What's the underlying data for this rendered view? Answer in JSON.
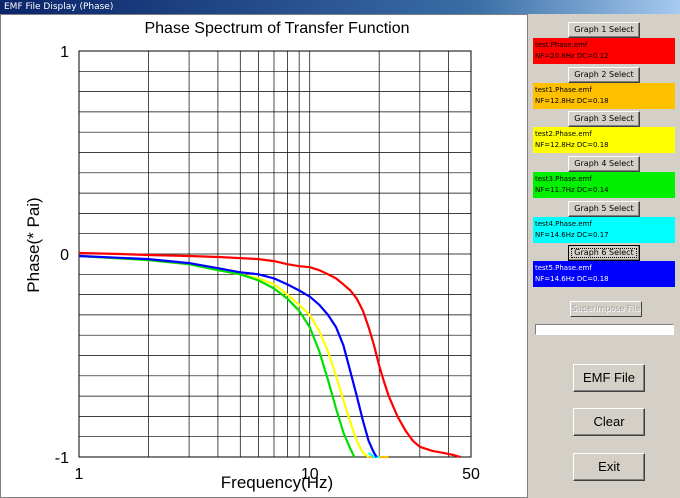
{
  "window": {
    "title": "EMF File Display (Phase)"
  },
  "chart_data": {
    "type": "line",
    "title": "Phase Spectrum of Transfer Function",
    "xlabel": "Frequency(Hz)",
    "ylabel": "Phase(* Pai)",
    "xscale": "log",
    "xlim": [
      1,
      50
    ],
    "ylim": [
      -1,
      1
    ],
    "x_tick_labels": [
      "1",
      "10",
      "50"
    ],
    "y_tick_labels": [
      "1",
      "0",
      "-1"
    ],
    "grid": true,
    "series": [
      {
        "color": "#ff0000",
        "points": [
          [
            1,
            0.005
          ],
          [
            1.5,
            0.0
          ],
          [
            2,
            -0.005
          ],
          [
            3,
            -0.01
          ],
          [
            4,
            -0.015
          ],
          [
            5,
            -0.02
          ],
          [
            6,
            -0.025
          ],
          [
            7,
            -0.035
          ],
          [
            8,
            -0.05
          ],
          [
            9,
            -0.06
          ],
          [
            10,
            -0.065
          ],
          [
            11,
            -0.08
          ],
          [
            12,
            -0.1
          ],
          [
            13,
            -0.12
          ],
          [
            14,
            -0.15
          ],
          [
            15,
            -0.18
          ],
          [
            16,
            -0.22
          ],
          [
            17,
            -0.28
          ],
          [
            18,
            -0.36
          ],
          [
            19,
            -0.45
          ],
          [
            20,
            -0.55
          ],
          [
            21,
            -0.63
          ],
          [
            22,
            -0.7
          ],
          [
            24,
            -0.8
          ],
          [
            26,
            -0.87
          ],
          [
            28,
            -0.92
          ],
          [
            30,
            -0.95
          ],
          [
            34,
            -0.97
          ],
          [
            38,
            -0.98
          ],
          [
            42,
            -0.99
          ],
          [
            45,
            -1.0
          ]
        ]
      },
      {
        "color": "#ffc000",
        "points": [
          [
            18,
            -1.0
          ],
          [
            20,
            -1.0
          ],
          [
            22,
            -1.0
          ]
        ]
      },
      {
        "color": "#ffff00",
        "points": [
          [
            1,
            -0.01
          ],
          [
            2,
            -0.03
          ],
          [
            3,
            -0.05
          ],
          [
            4,
            -0.08
          ],
          [
            5,
            -0.1
          ],
          [
            6,
            -0.12
          ],
          [
            7,
            -0.15
          ],
          [
            8,
            -0.2
          ],
          [
            9,
            -0.25
          ],
          [
            10,
            -0.3
          ],
          [
            11,
            -0.38
          ],
          [
            12,
            -0.48
          ],
          [
            13,
            -0.6
          ],
          [
            14,
            -0.72
          ],
          [
            15,
            -0.83
          ],
          [
            16,
            -0.92
          ],
          [
            17,
            -0.98
          ],
          [
            18,
            -1.0
          ]
        ]
      },
      {
        "color": "#00e000",
        "points": [
          [
            1,
            -0.01
          ],
          [
            2,
            -0.03
          ],
          [
            3,
            -0.05
          ],
          [
            4,
            -0.08
          ],
          [
            5,
            -0.1
          ],
          [
            6,
            -0.13
          ],
          [
            7,
            -0.17
          ],
          [
            8,
            -0.22
          ],
          [
            9,
            -0.28
          ],
          [
            10,
            -0.36
          ],
          [
            11,
            -0.48
          ],
          [
            12,
            -0.62
          ],
          [
            13,
            -0.76
          ],
          [
            14,
            -0.88
          ],
          [
            15,
            -0.96
          ],
          [
            15.6,
            -1.0
          ]
        ]
      },
      {
        "color": "#00ffff",
        "points": [
          [
            18,
            -0.98
          ],
          [
            19,
            -1.0
          ],
          [
            20,
            -1.0
          ]
        ]
      },
      {
        "color": "#0000ff",
        "points": [
          [
            1,
            -0.01
          ],
          [
            2,
            -0.025
          ],
          [
            3,
            -0.045
          ],
          [
            4,
            -0.07
          ],
          [
            5,
            -0.09
          ],
          [
            6,
            -0.1
          ],
          [
            7,
            -0.12
          ],
          [
            8,
            -0.15
          ],
          [
            9,
            -0.18
          ],
          [
            10,
            -0.21
          ],
          [
            11,
            -0.25
          ],
          [
            12,
            -0.3
          ],
          [
            13,
            -0.36
          ],
          [
            14,
            -0.45
          ],
          [
            15,
            -0.58
          ],
          [
            16,
            -0.7
          ],
          [
            17,
            -0.82
          ],
          [
            18,
            -0.92
          ],
          [
            19,
            -0.98
          ],
          [
            19.5,
            -1.0
          ]
        ]
      }
    ]
  },
  "graphs": [
    {
      "button": "Graph 1 Select",
      "file": "test.Phase.emf",
      "params": "NF=20.8Hz DC=0.12",
      "color": "#ff0000"
    },
    {
      "button": "Graph 2 Select",
      "file": "test1.Phase.emf",
      "params": "NF=12.8Hz DC=0.18",
      "color": "#ffc000"
    },
    {
      "button": "Graph 3 Select",
      "file": "test2.Phase.emf",
      "params": "NF=12.8Hz DC=0.18",
      "color": "#ffff00"
    },
    {
      "button": "Graph 4 Select",
      "file": "test3.Phase.emf",
      "params": "NF=11.7Hz DC=0.14",
      "color": "#00f000"
    },
    {
      "button": "Graph 5 Select",
      "file": "test4.Phase.emf",
      "params": "NF=14.6Hz DC=0.17",
      "color": "#00ffff"
    },
    {
      "button": "Graph 6 Select",
      "file": "test5.Phase.emf",
      "params": "NF=14.6Hz DC=0.18",
      "color": "#0000ff"
    }
  ],
  "superimpose_label": "Superimpose File",
  "emf_file_label": "EMF File",
  "clear_label": "Clear",
  "exit_label": "Exit"
}
